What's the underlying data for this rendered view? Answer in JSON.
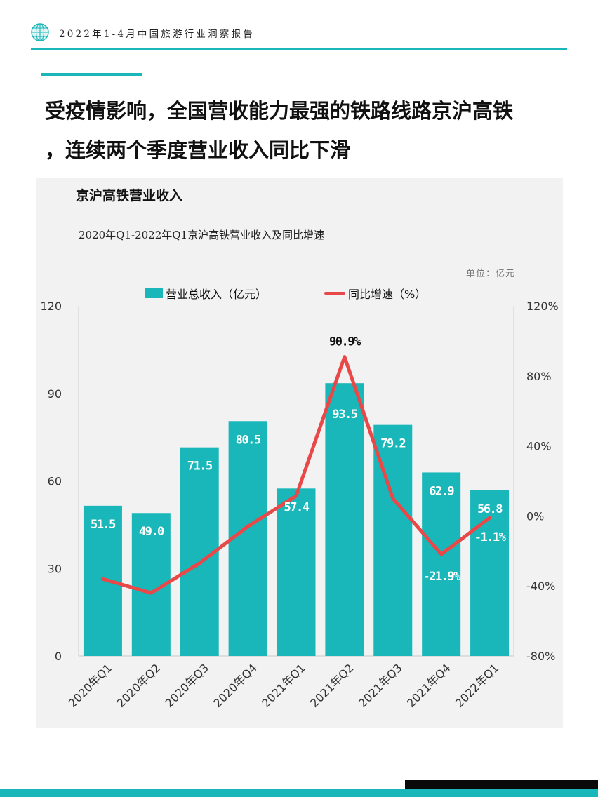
{
  "header": {
    "report_title": "2022年1-4月中国旅游行业洞察报告"
  },
  "headline": {
    "line1": "受疫情影响，全国营收能力最强的铁路线路京沪高铁",
    "line2": "，连续两个季度营业收入同比下滑"
  },
  "colors": {
    "accent": "#19b7b9",
    "line": "#e94848",
    "panel": "#f2f2f2"
  },
  "chart_data": {
    "type": "bar",
    "title": "京沪高铁营业收入",
    "subtitle": "2020年Q1-2022年Q1京沪高铁营业收入及同比增速",
    "unit": "单位：亿元",
    "categories": [
      "2020年Q1",
      "2020年Q2",
      "2020年Q3",
      "2020年Q4",
      "2021年Q1",
      "2021年Q2",
      "2021年Q3",
      "2021年Q4",
      "2022年Q1"
    ],
    "series": [
      {
        "name": "营业总收入（亿元）",
        "type": "bar",
        "axis": "left",
        "values": [
          51.5,
          49.0,
          71.5,
          80.5,
          57.4,
          93.5,
          79.2,
          62.9,
          56.8
        ],
        "labels": [
          "51.5",
          "49.0",
          "71.5",
          "80.5",
          "57.4",
          "93.5",
          "79.2",
          "62.9",
          "56.8"
        ]
      },
      {
        "name": "同比增速（%）",
        "type": "line",
        "axis": "right",
        "values": [
          -36.0,
          -44.0,
          -27.0,
          -6.0,
          11.5,
          90.9,
          10.0,
          -21.9,
          -1.1
        ],
        "labels": [
          "",
          "",
          "",
          "",
          "",
          "90.9%",
          "",
          "-21.9%",
          "-1.1%"
        ]
      }
    ],
    "ylim": [
      0,
      120
    ],
    "yticks": [
      "0",
      "30",
      "60",
      "90",
      "120"
    ],
    "y2lim": [
      -80,
      120
    ],
    "y2ticks": [
      "-80%",
      "-40%",
      "0%",
      "40%",
      "80%",
      "120%"
    ],
    "legend": "top-center"
  }
}
